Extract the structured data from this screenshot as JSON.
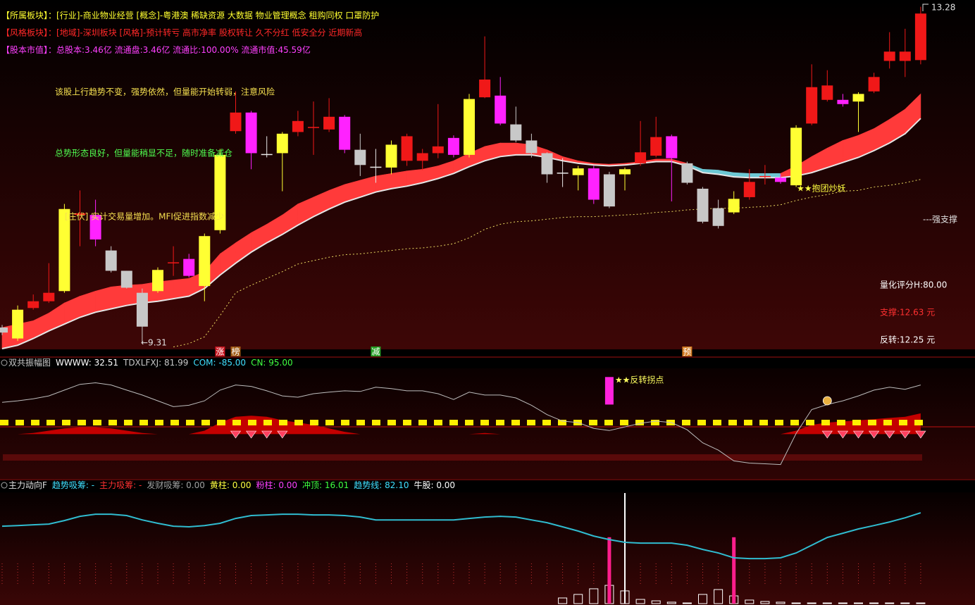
{
  "chart_data": [
    {
      "type": "candlestick",
      "info_lines": [
        {
          "label": "【所属板块】：",
          "text": "[行业]-商业物业经营 [概念]-粤港澳 稀缺资源 大数据 物业管理概念 租购同权 口罩防护",
          "color": "#ffff30"
        },
        {
          "label": "【风格板块】：",
          "text": "[地域]-深圳板块 [风格]-预计转亏 高市净率 股权转让 久不分红 低安全分 近期新高",
          "color": "#ff2828"
        },
        {
          "label": "【股本市值】：",
          "text": "总股本:3.46亿 流通盘:3.46亿 流通比:100.00% 流通市值:45.59亿",
          "color": "#ff40ff"
        }
      ],
      "annotations": [
        {
          "text": "该股上行趋势不变，强势依然，但量能开始转弱，注意风险",
          "color": "#f5e050"
        },
        {
          "text": "总势形态良好，但量能稍显不足，随时准备减仓",
          "color": "#50ff50"
        },
        {
          "text": "[庄伏] 实计交易量增加。MFI促进指数减少",
          "color": "#f5e050"
        },
        {
          "text": "★★抱团炒妖",
          "color": "#ffff40"
        },
        {
          "text": "---强支撑",
          "color": "#e0e0e0"
        },
        {
          "text": "量化评分H:80.00",
          "color": "#ffffff"
        },
        {
          "text": "支撑:12.63 元",
          "color": "#ff3030"
        },
        {
          "text": "反转:12.25 元",
          "color": "#ffffff"
        },
        {
          "text": "←9.31",
          "color": "#e0e0e0"
        },
        {
          "text": "13.28",
          "color": "#e0e0e0"
        }
      ],
      "open": [
        9.49,
        9.36,
        9.72,
        9.8,
        9.92,
        10.84,
        10.82,
        10.4,
        10.16,
        9.9,
        9.92,
        10.25,
        10.3,
        9.98,
        10.64,
        11.81,
        12.03,
        11.54,
        11.55,
        11.8,
        11.85,
        11.83,
        11.98,
        11.59,
        11.39,
        11.38,
        11.46,
        11.46,
        11.55,
        11.73,
        11.53,
        12.21,
        12.23,
        11.89,
        11.7,
        11.55,
        11.32,
        11.29,
        11.37,
        11.3,
        11.3,
        11.43,
        11.52,
        11.75,
        11.43,
        11.13,
        10.9,
        10.85,
        11.03,
        11.27,
        11.26,
        11.17,
        11.9,
        12.18,
        12.18,
        12.16,
        12.28,
        12.64,
        12.64,
        12.65
      ],
      "close": [
        9.43,
        9.7,
        9.8,
        9.9,
        10.89,
        10.82,
        10.53,
        10.16,
        9.96,
        9.5,
        10.17,
        10.26,
        10.1,
        10.57,
        11.53,
        12.03,
        11.55,
        11.54,
        11.78,
        11.93,
        11.86,
        11.98,
        11.59,
        11.41,
        11.39,
        11.65,
        11.75,
        11.55,
        11.63,
        11.53,
        12.19,
        12.42,
        11.9,
        11.7,
        11.55,
        11.3,
        11.31,
        11.37,
        11.0,
        10.92,
        11.36,
        11.56,
        11.74,
        11.49,
        11.2,
        10.74,
        10.69,
        11.01,
        11.21,
        11.28,
        11.21,
        11.85,
        12.33,
        12.35,
        12.13,
        12.25,
        12.45,
        12.75,
        12.75,
        13.2
      ],
      "high": [
        9.52,
        9.75,
        9.88,
        10.25,
        10.95,
        11.11,
        11.0,
        10.45,
        10.16,
        9.95,
        10.2,
        10.45,
        10.36,
        10.6,
        11.6,
        12.28,
        12.05,
        11.75,
        11.8,
        12.05,
        12.16,
        12.2,
        12.0,
        11.78,
        11.6,
        11.7,
        11.78,
        11.6,
        12.13,
        11.76,
        12.25,
        12.93,
        12.45,
        12.1,
        11.78,
        11.56,
        11.49,
        11.4,
        11.4,
        11.33,
        11.38,
        11.93,
        11.98,
        11.77,
        11.45,
        11.15,
        11.0,
        11.1,
        11.36,
        11.41,
        11.3,
        11.88,
        12.6,
        12.53,
        12.25,
        12.27,
        12.5,
        12.98,
        13.02,
        13.28
      ],
      "low": [
        9.4,
        9.33,
        9.7,
        9.78,
        9.9,
        10.45,
        10.45,
        10.14,
        9.95,
        9.31,
        9.9,
        10.1,
        10.08,
        9.8,
        10.6,
        11.78,
        11.36,
        11.5,
        11.1,
        11.75,
        11.53,
        11.8,
        11.55,
        11.28,
        11.2,
        11.3,
        11.4,
        11.35,
        11.49,
        11.5,
        11.5,
        12.2,
        11.88,
        11.68,
        11.5,
        11.2,
        11.15,
        11.11,
        10.95,
        10.9,
        11.11,
        11.4,
        11.5,
        10.98,
        11.18,
        10.72,
        10.66,
        10.83,
        11.0,
        11.18,
        11.19,
        11.15,
        11.88,
        12.16,
        12.1,
        11.8,
        12.26,
        12.55,
        12.45,
        12.6
      ],
      "colors": [
        "#c8c8c8",
        "#ffff33",
        "#f01818",
        "#f01818",
        "#ffff33",
        "#f01818",
        "#ff22ff",
        "#c8c8c8",
        "#c8c8c8",
        "#c8c8c8",
        "#ffff33",
        "#f01818",
        "#ff22ff",
        "#ffff33",
        "#ffff33",
        "#f01818",
        "#ff22ff",
        "#e8e8e8",
        "#ffff33",
        "#f01818",
        "#f01818",
        "#f01818",
        "#ff22ff",
        "#c8c8c8",
        "#e8e8e8",
        "#ffff33",
        "#f01818",
        "#f01818",
        "#f01818",
        "#ff22ff",
        "#ffff33",
        "#f01818",
        "#ff22ff",
        "#c8c8c8",
        "#c8c8c8",
        "#c8c8c8",
        "#e8e8e8",
        "#ffff33",
        "#ff22ff",
        "#c8c8c8",
        "#ffff33",
        "#f01818",
        "#f01818",
        "#ff22ff",
        "#c8c8c8",
        "#c8c8c8",
        "#c8c8c8",
        "#ffff33",
        "#f01818",
        "#f01818",
        "#ff22ff",
        "#ffff33",
        "#f01818",
        "#f01818",
        "#ff22ff",
        "#ffff33",
        "#f01818",
        "#f01818",
        "#f01818",
        "#f01818"
      ],
      "band": {
        "upper": [
          9.49,
          9.53,
          9.57,
          9.66,
          9.78,
          9.86,
          9.92,
          9.97,
          9.99,
          10.0,
          10.03,
          10.05,
          10.07,
          10.15,
          10.36,
          10.49,
          10.61,
          10.71,
          10.82,
          10.95,
          11.03,
          11.11,
          11.18,
          11.23,
          11.28,
          11.31,
          11.34,
          11.36,
          11.4,
          11.46,
          11.55,
          11.63,
          11.67,
          11.67,
          11.65,
          11.59,
          11.51,
          11.46,
          11.43,
          11.42,
          11.43,
          11.45,
          11.48,
          11.48,
          11.43,
          11.36,
          11.35,
          11.32,
          11.31,
          11.31,
          11.31,
          11.4,
          11.51,
          11.61,
          11.7,
          11.76,
          11.84,
          11.95,
          12.07,
          12.25
        ],
        "lower": [
          9.24,
          9.28,
          9.36,
          9.45,
          9.53,
          9.61,
          9.67,
          9.71,
          9.75,
          9.78,
          9.8,
          9.83,
          9.86,
          9.95,
          10.11,
          10.25,
          10.38,
          10.49,
          10.59,
          10.7,
          10.8,
          10.89,
          10.97,
          11.03,
          11.09,
          11.13,
          11.16,
          11.2,
          11.25,
          11.31,
          11.39,
          11.46,
          11.51,
          11.53,
          11.53,
          11.5,
          11.46,
          11.43,
          11.41,
          11.4,
          11.41,
          11.43,
          11.45,
          11.45,
          11.4,
          11.32,
          11.3,
          11.27,
          11.26,
          11.26,
          11.26,
          11.28,
          11.32,
          11.38,
          11.44,
          11.5,
          11.58,
          11.67,
          11.78,
          11.96
        ],
        "color": "#ff3a3a",
        "edge_color": "#e6e6e6",
        "alt_color": "#6cc8d4",
        "alt_range": [
          44,
          50
        ]
      },
      "ma": {
        "values": [
          null,
          null,
          null,
          null,
          null,
          null,
          null,
          null,
          null,
          null,
          null,
          9.26,
          9.3,
          9.38,
          9.63,
          9.9,
          9.99,
          10.07,
          10.15,
          10.24,
          10.28,
          10.32,
          10.35,
          10.36,
          10.38,
          10.4,
          10.42,
          10.43,
          10.45,
          10.48,
          10.55,
          10.65,
          10.71,
          10.74,
          10.75,
          10.77,
          10.79,
          10.8,
          10.8,
          10.81,
          10.82,
          10.83,
          10.85,
          10.86,
          10.88,
          10.89,
          10.9,
          10.9,
          10.91,
          10.92,
          10.94,
          10.99,
          11.03,
          11.06,
          11.1,
          11.11,
          11.15,
          11.17,
          11.2,
          11.24
        ],
        "color": "#e8d860"
      },
      "markers": [
        {
          "index": 14,
          "text": "涨",
          "color": "#c8141e"
        },
        {
          "index": 15,
          "text": "榜",
          "color": "#a05a14"
        },
        {
          "index": 24,
          "text": "减",
          "color": "#28a028"
        },
        {
          "index": 44,
          "text": "预",
          "color": "#d2781e"
        }
      ],
      "ylim": [
        9.24,
        13.36
      ]
    },
    {
      "type": "line",
      "header": [
        {
          "text": "双共振幅图",
          "color": "#c8c8c8"
        },
        {
          "text": "WWWW: 32.51",
          "color": "#ffffff"
        },
        {
          "text": "TDXLFXJ: 81.99",
          "color": "#c8c8c8"
        },
        {
          "text": "COM: -85.00",
          "color": "#40e0ff"
        },
        {
          "text": "CN: 95.00",
          "color": "#40ff40"
        }
      ],
      "series": [
        {
          "color": "#bdbdbd",
          "values": [
            27.5,
            28.8,
            30.6,
            33.1,
            38.1,
            43.1,
            44.4,
            42.5,
            38.1,
            33.8,
            28.8,
            23.8,
            25,
            28.8,
            38.1,
            42.5,
            41.3,
            37.5,
            33.1,
            31.9,
            35,
            36.3,
            37.5,
            36.9,
            40.6,
            39.4,
            37.5,
            37.5,
            35,
            30,
            36.3,
            33.8,
            33.8,
            31.3,
            25,
            16.9,
            11.3,
            10,
            5,
            3.1,
            6.3,
            9.4,
            11.3,
            10,
            3.8,
            -7.5,
            -13.8,
            -23.1,
            -25,
            -25.6,
            -26.3,
            0.6,
            21.3,
            25.6,
            28.8,
            33.1,
            38.1,
            40.6,
            38.8,
            42.5
          ]
        }
      ],
      "area": {
        "color": "#c40000",
        "values": [
          0,
          0,
          1,
          3,
          5,
          6,
          6,
          5,
          3,
          1,
          0,
          0,
          0,
          3,
          10,
          15,
          16,
          15,
          12,
          10,
          8,
          5,
          2,
          0,
          0,
          0,
          0,
          0,
          0,
          0,
          0,
          1,
          0,
          0,
          0,
          0,
          0,
          0,
          0,
          0,
          0,
          0,
          0,
          0,
          0,
          0,
          0,
          0,
          0,
          0,
          0,
          3,
          8,
          10,
          11,
          12,
          13,
          14,
          15,
          18
        ]
      },
      "level": {
        "value": 10,
        "color": "#ffee00"
      },
      "diamond_indices": [
        15,
        16,
        17,
        18,
        53,
        54,
        55,
        56,
        57,
        58,
        59
      ],
      "diamond_color": "#ff4060",
      "signal": {
        "index": 39,
        "from": 49.4,
        "to": 25.6,
        "color": "#ff22dd",
        "text": "★★反转拐点",
        "text_color": "#ffff60"
      },
      "bag_index": 53,
      "ylim": [
        -43.1,
        56.9
      ]
    },
    {
      "type": "line",
      "header": [
        {
          "text": "主力动向F",
          "color": "#e0e0e0"
        },
        {
          "text": "趋势吸筹: -",
          "color": "#40e0ff"
        },
        {
          "text": "主力吸筹: -",
          "color": "#ff3030"
        },
        {
          "text": "发财吸筹: 0.00",
          "color": "#a0a0a0"
        },
        {
          "text": "黄柱: 0.00",
          "color": "#ffff40"
        },
        {
          "text": "粉柱: 0.00",
          "color": "#ff40ff"
        },
        {
          "text": "冲顶: 16.01",
          "color": "#40ff40"
        },
        {
          "text": "趋势线: 82.10",
          "color": "#40e0ff"
        },
        {
          "text": "牛股: 0.00",
          "color": "#ffffff"
        }
      ],
      "series": [
        {
          "color": "#30bcd0",
          "values": [
            70.0,
            70.6,
            71.3,
            71.9,
            75.1,
            78.9,
            80.8,
            80.8,
            79.6,
            75.7,
            72.6,
            70.0,
            69.4,
            70.6,
            72.6,
            77.0,
            79.6,
            80.2,
            80.8,
            80.8,
            80.2,
            80.2,
            79.6,
            78.3,
            75.7,
            75.7,
            75.7,
            75.7,
            75.7,
            75.7,
            77.0,
            78.3,
            78.9,
            78.3,
            75.7,
            73.2,
            69.4,
            65.6,
            61.1,
            57.9,
            55.4,
            54.7,
            54.7,
            54.7,
            52.8,
            49.0,
            45.8,
            41.4,
            40.7,
            40.7,
            41.4,
            45.8,
            52.8,
            59.8,
            63.6,
            67.5,
            70.6,
            73.8,
            77.6,
            82.1
          ]
        }
      ],
      "bars": {
        "color": "#ffffff",
        "values": [
          0,
          0,
          0,
          0,
          0,
          0,
          0,
          0,
          0,
          0,
          0,
          0,
          0,
          0,
          0,
          0,
          0,
          0,
          0,
          0,
          0,
          0,
          0,
          0,
          0,
          0,
          0,
          0,
          0,
          0,
          0,
          0,
          0,
          0,
          0,
          0,
          5.1,
          8.3,
          13.4,
          16.5,
          11.5,
          3.8,
          2.5,
          1.3,
          0.6,
          8.3,
          12.7,
          7,
          3.2,
          1.9,
          1.3,
          0.6,
          0.6,
          0.6,
          0.6,
          0.6,
          0.6,
          0.6,
          0.6,
          0.6
        ]
      },
      "spikes": {
        "color": "#ff1e8c",
        "values": [
          null,
          null,
          null,
          null,
          null,
          null,
          null,
          null,
          null,
          null,
          null,
          null,
          null,
          null,
          null,
          null,
          null,
          null,
          null,
          null,
          null,
          null,
          null,
          null,
          null,
          null,
          null,
          null,
          null,
          null,
          null,
          null,
          null,
          null,
          null,
          null,
          null,
          null,
          null,
          60,
          null,
          null,
          null,
          null,
          null,
          null,
          null,
          60,
          null,
          null,
          null,
          null,
          null,
          null,
          null,
          null,
          null,
          null,
          null,
          null
        ]
      },
      "cursor_index": 40,
      "ylim": [
        0,
        100
      ]
    }
  ]
}
